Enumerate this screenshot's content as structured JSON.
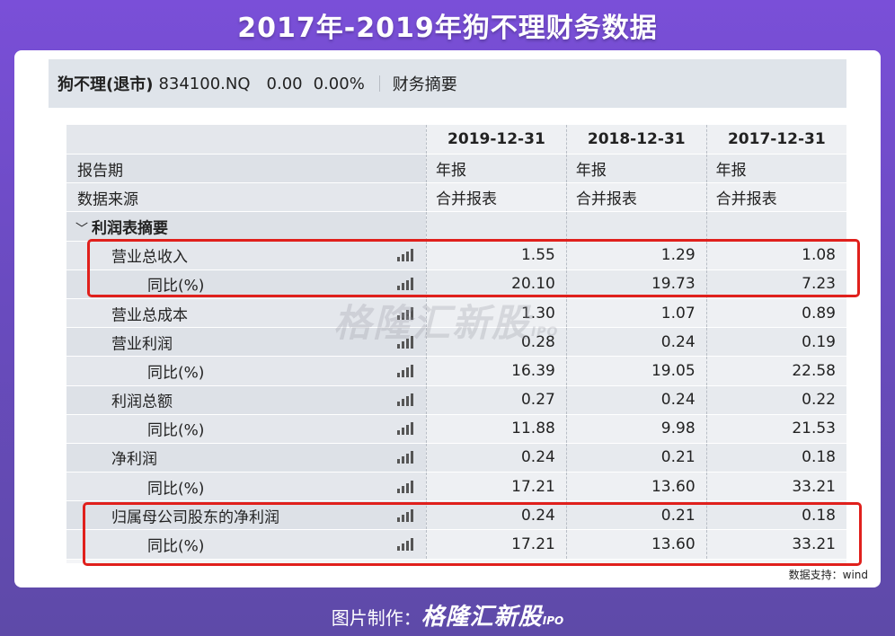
{
  "banner_title": "2017年-2019年狗不理财务数据",
  "header": {
    "company": "狗不理(退市)",
    "code": "834100.NQ",
    "price": "0.00",
    "change_pct": "0.00%",
    "section": "财务摘要"
  },
  "table": {
    "columns": [
      "2019-12-31",
      "2018-12-31",
      "2017-12-31"
    ],
    "report_period": {
      "label": "报告期",
      "values": [
        "年报",
        "年报",
        "年报"
      ]
    },
    "data_source": {
      "label": "数据来源",
      "values": [
        "合并报表",
        "合并报表",
        "合并报表"
      ]
    },
    "section_title": "利润表摘要",
    "rows": [
      {
        "label": "营业总收入",
        "values": [
          "1.55",
          "1.29",
          "1.08"
        ]
      },
      {
        "label": "同比(%)",
        "values": [
          "20.10",
          "19.73",
          "7.23"
        ]
      },
      {
        "label": "营业总成本",
        "values": [
          "1.30",
          "1.07",
          "0.89"
        ]
      },
      {
        "label": "营业利润",
        "values": [
          "0.28",
          "0.24",
          "0.19"
        ]
      },
      {
        "label": "同比(%)",
        "values": [
          "16.39",
          "19.05",
          "22.58"
        ]
      },
      {
        "label": "利润总额",
        "values": [
          "0.27",
          "0.24",
          "0.22"
        ]
      },
      {
        "label": "同比(%)",
        "values": [
          "11.88",
          "9.98",
          "21.53"
        ]
      },
      {
        "label": "净利润",
        "values": [
          "0.24",
          "0.21",
          "0.18"
        ]
      },
      {
        "label": "同比(%)",
        "values": [
          "17.21",
          "13.60",
          "33.21"
        ]
      },
      {
        "label": "归属母公司股东的净利润",
        "values": [
          "0.24",
          "0.21",
          "0.18"
        ]
      },
      {
        "label": "同比(%)",
        "values": [
          "17.21",
          "13.60",
          "33.21"
        ]
      }
    ]
  },
  "watermark": {
    "brand": "格隆汇新股",
    "ipo": "IPO"
  },
  "source_note": "数据支持：wind",
  "footer": {
    "prefix": "图片制作：",
    "brand": "格隆汇新股",
    "ipo": "IPO"
  },
  "icons": {
    "row_chart": "bar-chart-icon",
    "section_toggle": "chevron-down-icon"
  },
  "colors": {
    "highlight": "#e0201c",
    "background": "#7a4fd8"
  }
}
